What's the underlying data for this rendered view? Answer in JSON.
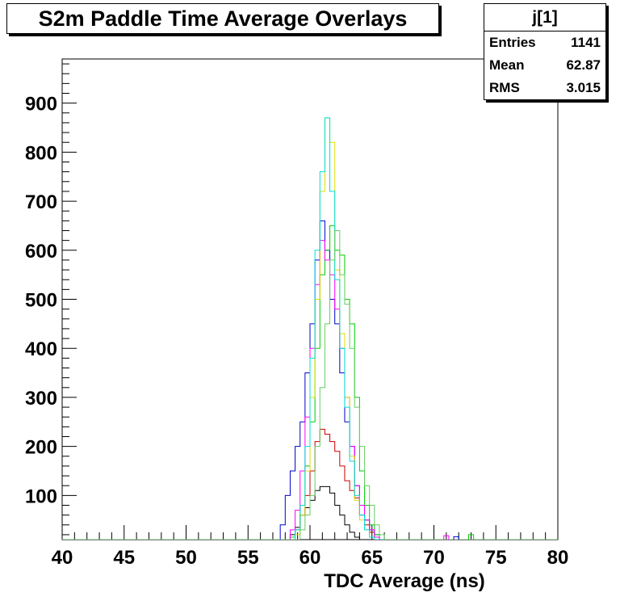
{
  "title": "S2m Paddle Time Average Overlays",
  "stats": {
    "name": "j[1]",
    "rows": [
      {
        "label": "Entries",
        "value": "1141"
      },
      {
        "label": "Mean",
        "value": "62.87"
      },
      {
        "label": "RMS",
        "value": "3.015"
      }
    ]
  },
  "chart_data": {
    "type": "line",
    "step": true,
    "title": "S2m Paddle Time Average Overlays",
    "xlabel": "TDC Average (ns)",
    "ylabel": "",
    "xlim": [
      40,
      80
    ],
    "ylim": [
      10,
      990
    ],
    "xticks": [
      40,
      45,
      50,
      55,
      60,
      65,
      70,
      75,
      80
    ],
    "yticks": [
      100,
      200,
      300,
      400,
      500,
      600,
      700,
      800,
      900
    ],
    "bin_width": 0.4,
    "series_x": [
      57.6,
      58.0,
      58.4,
      58.8,
      59.2,
      59.6,
      60.0,
      60.4,
      60.8,
      61.2,
      61.6,
      62.0,
      62.4,
      62.8,
      63.2,
      63.6,
      64.0,
      64.4,
      64.8,
      65.2,
      65.6,
      66.0,
      66.4,
      66.8,
      67.2
    ],
    "series": [
      {
        "color": "#000000",
        "values": [
          0,
          10,
          20,
          35,
          60,
          75,
          90,
          110,
          118,
          118,
          105,
          80,
          60,
          40,
          25,
          15,
          10,
          5,
          3,
          0,
          0,
          0,
          0,
          0,
          0
        ]
      },
      {
        "color": "#cc0000",
        "values": [
          0,
          5,
          15,
          30,
          60,
          100,
          150,
          210,
          235,
          225,
          210,
          190,
          160,
          130,
          110,
          95,
          60,
          40,
          25,
          15,
          10,
          5,
          0,
          0,
          0
        ]
      },
      {
        "color": "#0000cc",
        "values": [
          40,
          100,
          150,
          200,
          250,
          350,
          450,
          580,
          660,
          600,
          500,
          450,
          350,
          250,
          200,
          120,
          80,
          50,
          30,
          20,
          10,
          5,
          0,
          0,
          0
        ]
      },
      {
        "color": "#00cc00",
        "values": [
          0,
          5,
          15,
          30,
          80,
          160,
          250,
          400,
          550,
          600,
          650,
          600,
          590,
          500,
          450,
          300,
          150,
          80,
          40,
          20,
          10,
          5,
          0,
          0,
          0
        ]
      },
      {
        "color": "#ff00ff",
        "values": [
          0,
          10,
          30,
          70,
          150,
          260,
          400,
          530,
          620,
          580,
          550,
          480,
          400,
          300,
          200,
          120,
          80,
          50,
          30,
          15,
          5,
          0,
          0,
          0,
          0
        ]
      },
      {
        "color": "#dddd00",
        "values": [
          0,
          0,
          10,
          20,
          60,
          150,
          300,
          500,
          720,
          870,
          820,
          560,
          430,
          300,
          180,
          90,
          50,
          30,
          15,
          5,
          0,
          0,
          0,
          0,
          0
        ]
      },
      {
        "color": "#00dddd",
        "values": [
          0,
          0,
          10,
          30,
          80,
          200,
          380,
          600,
          760,
          870,
          720,
          540,
          400,
          280,
          170,
          100,
          60,
          30,
          15,
          5,
          0,
          0,
          0,
          0,
          0
        ]
      },
      {
        "color": "#66cc66",
        "values": [
          0,
          0,
          5,
          10,
          30,
          60,
          100,
          200,
          320,
          450,
          580,
          640,
          550,
          490,
          400,
          280,
          200,
          120,
          80,
          40,
          20,
          10,
          5,
          0,
          0
        ]
      }
    ],
    "outliers": [
      {
        "color": "#00cc00",
        "x": 72.8,
        "y": 20
      },
      {
        "color": "#ff00ff",
        "x": 70.8,
        "y": 18
      },
      {
        "color": "#0000cc",
        "x": 71.6,
        "y": 16
      }
    ],
    "grid": false,
    "legend": "none"
  }
}
